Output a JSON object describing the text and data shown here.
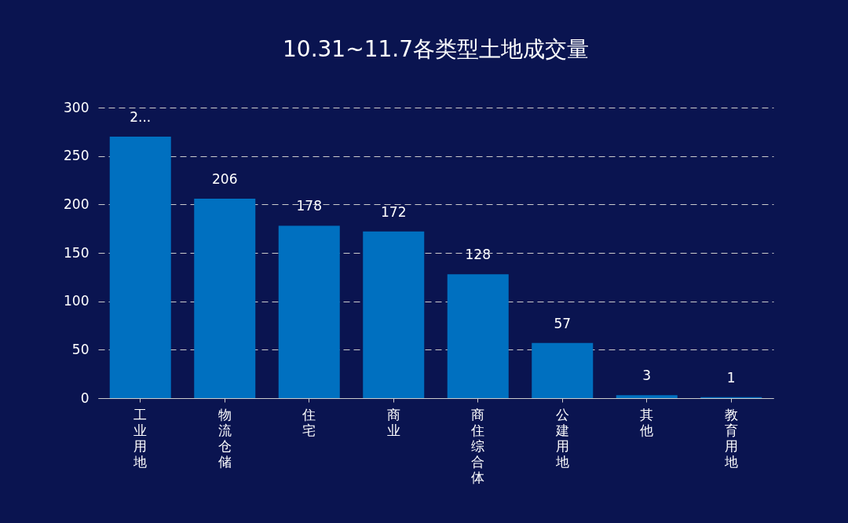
{
  "chart_data": {
    "type": "bar",
    "title": "10.31~11.7各类型土地成交量",
    "categories": [
      "工业用地",
      "物流仓储",
      "住宅",
      "商业",
      "商住综合体",
      "公建用地",
      "其他",
      "教育用地"
    ],
    "values": [
      270,
      206,
      178,
      172,
      128,
      57,
      3,
      1
    ],
    "value_labels": [
      "2...",
      "206",
      "178",
      "172",
      "128",
      "57",
      "3",
      "1"
    ],
    "color": "#0070c0",
    "ylim": [
      0,
      300
    ],
    "yticks": [
      0,
      50,
      100,
      150,
      200,
      250,
      300
    ],
    "grid": "y",
    "line_style": "dashed"
  }
}
